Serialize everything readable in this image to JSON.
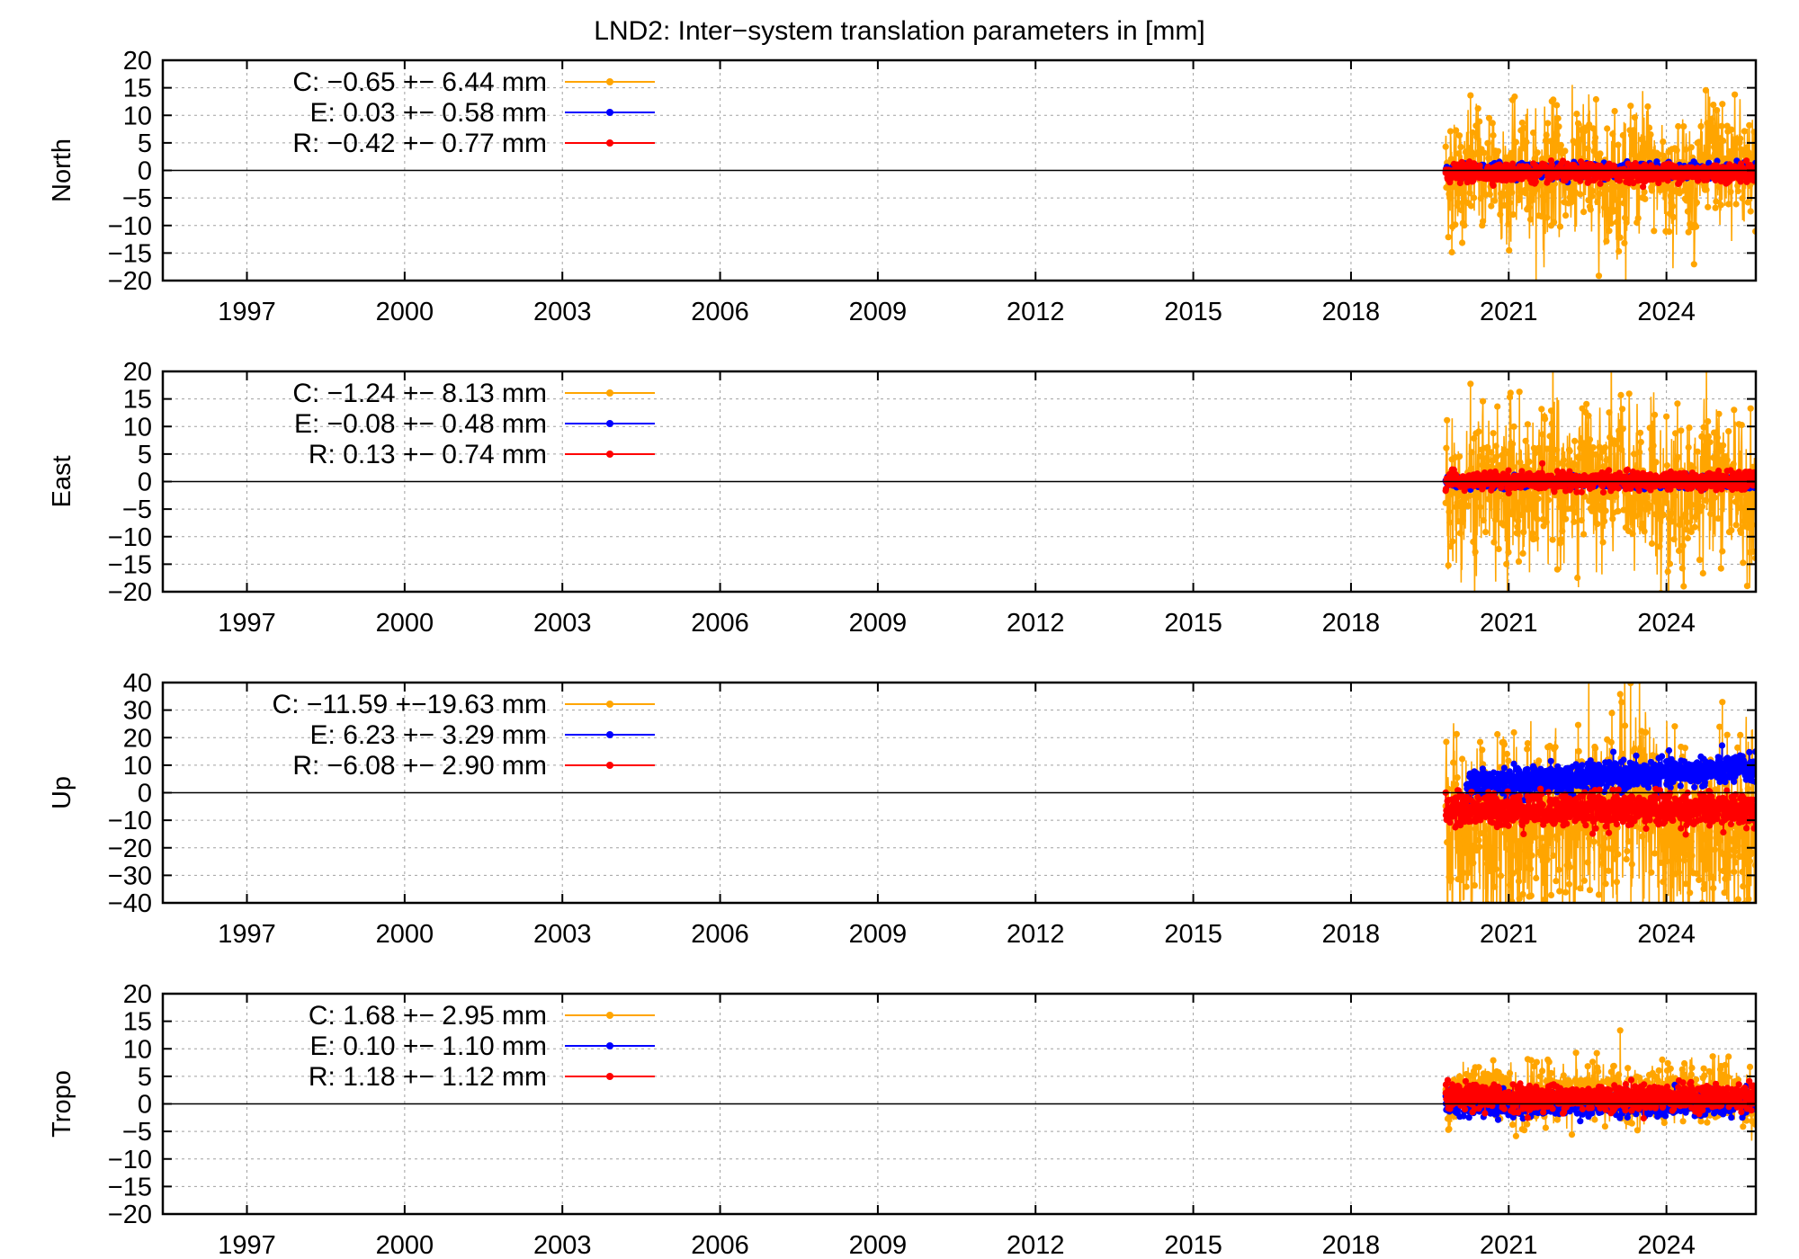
{
  "title": "LND2: Inter−system translation parameters in [mm]",
  "colors": {
    "C": "#ffa500",
    "E": "#0000ff",
    "R": "#ff0000",
    "axis": "#000000",
    "grid": "#a0a0a0"
  },
  "chart_data": [
    {
      "type": "line",
      "ylabel": "North",
      "ylim": [
        -20,
        20
      ],
      "yticks": [
        20,
        15,
        10,
        5,
        0,
        -5,
        -10,
        -15,
        -20
      ],
      "xlim": [
        1995.4,
        2025.7
      ],
      "xticks": [
        1997,
        2000,
        2003,
        2006,
        2009,
        2012,
        2015,
        2018,
        2021,
        2024
      ],
      "grid": true,
      "legend_position": "top-left",
      "series": [
        {
          "name": "C",
          "label": "C:  −0.65 +− 6.44 mm",
          "mean": -0.65,
          "std": 6.44,
          "x_range": [
            2019.8,
            2025.7
          ]
        },
        {
          "name": "E",
          "label": "E:  0.03 +− 0.58 mm",
          "mean": 0.03,
          "std": 0.58,
          "x_range": [
            2019.8,
            2025.7
          ]
        },
        {
          "name": "R",
          "label": "R:  −0.42 +− 0.77 mm",
          "mean": -0.42,
          "std": 0.77,
          "x_range": [
            2019.8,
            2025.7
          ]
        }
      ]
    },
    {
      "type": "line",
      "ylabel": "East",
      "ylim": [
        -20,
        20
      ],
      "yticks": [
        20,
        15,
        10,
        5,
        0,
        -5,
        -10,
        -15,
        -20
      ],
      "xlim": [
        1995.4,
        2025.7
      ],
      "xticks": [
        1997,
        2000,
        2003,
        2006,
        2009,
        2012,
        2015,
        2018,
        2021,
        2024
      ],
      "grid": true,
      "legend_position": "top-left",
      "series": [
        {
          "name": "C",
          "label": "C:  −1.24 +− 8.13 mm",
          "mean": -1.24,
          "std": 8.13,
          "x_range": [
            2019.8,
            2025.7
          ]
        },
        {
          "name": "E",
          "label": "E:  −0.08 +− 0.48 mm",
          "mean": -0.08,
          "std": 0.48,
          "x_range": [
            2019.8,
            2025.7
          ]
        },
        {
          "name": "R",
          "label": "R:  0.13 +− 0.74 mm",
          "mean": 0.13,
          "std": 0.74,
          "x_range": [
            2019.8,
            2025.7
          ]
        }
      ]
    },
    {
      "type": "line",
      "ylabel": "Up",
      "ylim": [
        -40,
        40
      ],
      "yticks": [
        40,
        30,
        20,
        10,
        0,
        -10,
        -20,
        -30,
        -40
      ],
      "xlim": [
        1995.4,
        2025.7
      ],
      "xticks": [
        1997,
        2000,
        2003,
        2006,
        2009,
        2012,
        2015,
        2018,
        2021,
        2024
      ],
      "grid": true,
      "legend_position": "top-left",
      "series": [
        {
          "name": "C",
          "label": "C: −11.59 +−19.63 mm",
          "mean": -11.59,
          "std": 19.63,
          "x_range": [
            2019.8,
            2025.7
          ]
        },
        {
          "name": "E",
          "label": "E:  6.23 +− 3.29 mm",
          "mean": 6.23,
          "std": 3.29,
          "x_range": [
            2020.2,
            2025.7
          ]
        },
        {
          "name": "R",
          "label": "R:  −6.08 +− 2.90 mm",
          "mean": -6.08,
          "std": 2.9,
          "x_range": [
            2019.8,
            2025.7
          ]
        }
      ]
    },
    {
      "type": "line",
      "ylabel": "Tropo",
      "ylim": [
        -20,
        20
      ],
      "yticks": [
        20,
        15,
        10,
        5,
        0,
        -5,
        -10,
        -15,
        -20
      ],
      "xlim": [
        1995.4,
        2025.7
      ],
      "xticks": [
        1997,
        2000,
        2003,
        2006,
        2009,
        2012,
        2015,
        2018,
        2021,
        2024
      ],
      "grid": true,
      "legend_position": "top-left",
      "series": [
        {
          "name": "C",
          "label": "C:  1.68 +− 2.95 mm",
          "mean": 1.68,
          "std": 2.95,
          "x_range": [
            2019.8,
            2025.7
          ]
        },
        {
          "name": "E",
          "label": "E:  0.10 +− 1.10 mm",
          "mean": 0.1,
          "std": 1.1,
          "x_range": [
            2019.8,
            2025.7
          ]
        },
        {
          "name": "R",
          "label": "R:  1.18 +− 1.12 mm",
          "mean": 1.18,
          "std": 1.12,
          "x_range": [
            2019.8,
            2025.7
          ]
        }
      ]
    }
  ]
}
